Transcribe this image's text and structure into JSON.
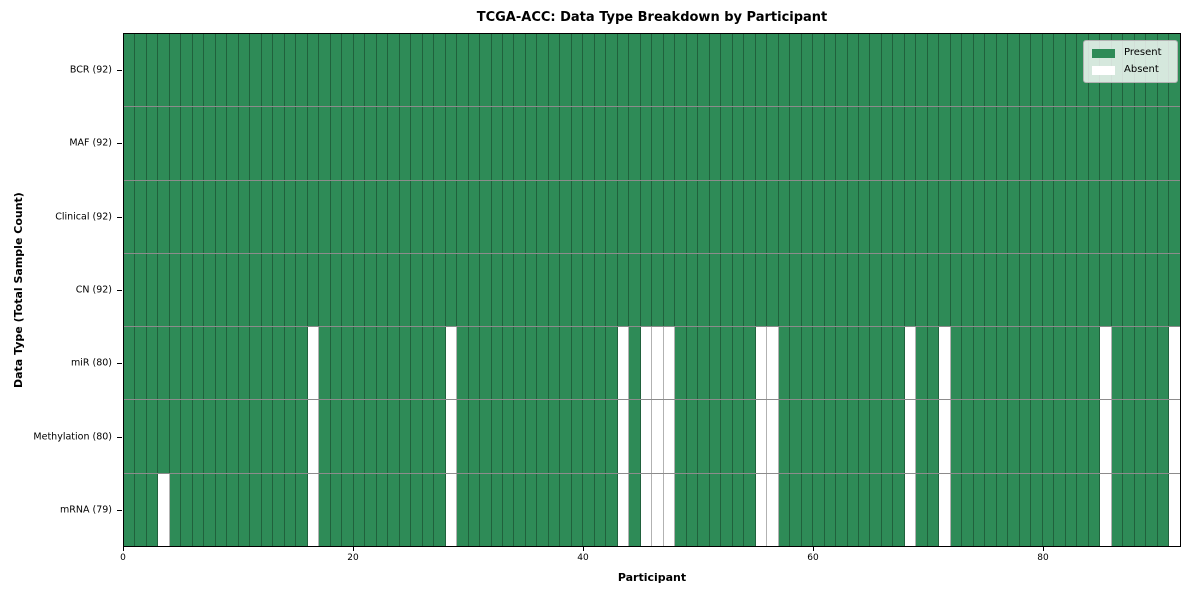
{
  "chart_data": {
    "type": "heatmap",
    "title": "TCGA-ACC: Data Type Breakdown by Participant",
    "xlabel": "Participant",
    "ylabel": "Data Type (Total Sample Count)",
    "n_participants": 92,
    "x_range": [
      0,
      92
    ],
    "x_ticks": [
      0,
      20,
      40,
      60,
      80
    ],
    "grid": true,
    "legend_position": "upper-right",
    "rows": [
      {
        "label": "BCR (92)",
        "data_type": "BCR",
        "present_count": 92,
        "absent_participants": []
      },
      {
        "label": "MAF (92)",
        "data_type": "MAF",
        "present_count": 92,
        "absent_participants": []
      },
      {
        "label": "Clinical (92)",
        "data_type": "Clinical",
        "present_count": 92,
        "absent_participants": []
      },
      {
        "label": "CN (92)",
        "data_type": "CN",
        "present_count": 92,
        "absent_participants": []
      },
      {
        "label": "miR (80)",
        "data_type": "miR",
        "present_count": 80,
        "absent_participants": [
          16,
          28,
          43,
          45,
          46,
          47,
          55,
          56,
          68,
          71,
          85,
          91
        ]
      },
      {
        "label": "Methylation (80)",
        "data_type": "Methylation",
        "present_count": 80,
        "absent_participants": [
          16,
          28,
          43,
          45,
          46,
          47,
          55,
          56,
          68,
          71,
          85,
          91
        ]
      },
      {
        "label": "mRNA (79)",
        "data_type": "mRNA",
        "present_count": 79,
        "absent_participants": [
          3,
          16,
          28,
          43,
          45,
          46,
          47,
          55,
          56,
          68,
          71,
          85,
          91
        ]
      }
    ],
    "legend": [
      {
        "label": "Present",
        "color": "#2e8b57"
      },
      {
        "label": "Absent",
        "color": "#ffffff"
      }
    ],
    "colors": {
      "present": "#2e8b57",
      "absent": "#ffffff"
    }
  }
}
